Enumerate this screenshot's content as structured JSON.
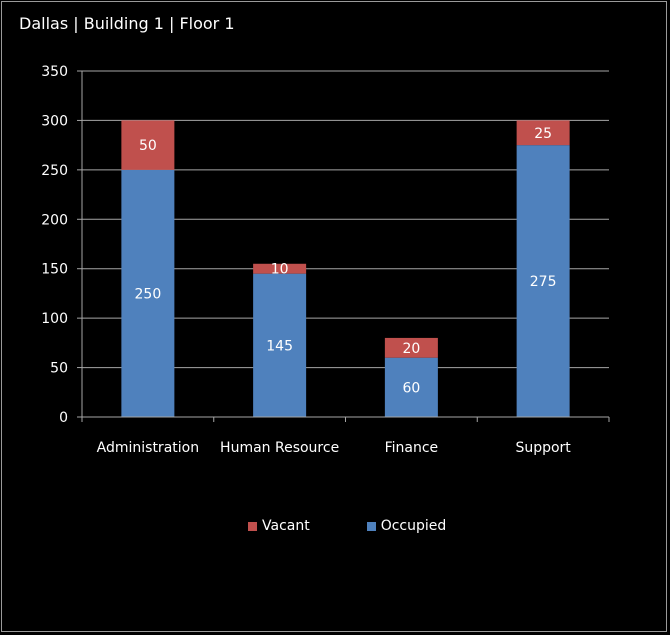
{
  "title": "Dallas | Building 1 | Floor 1",
  "colors": {
    "background": "#000000",
    "vacant": "#c0504d",
    "occupied": "#4f81bd",
    "grid": "#a6a6a6",
    "text": "#ffffff"
  },
  "chart_data": {
    "type": "bar",
    "stacked": true,
    "title": "Dallas | Building 1 | Floor 1",
    "xlabel": "",
    "ylabel": "",
    "categories": [
      "Administration",
      "Human Resource",
      "Finance",
      "Support"
    ],
    "series": [
      {
        "name": "Occupied",
        "values": [
          250,
          145,
          60,
          275
        ],
        "color": "#4f81bd"
      },
      {
        "name": "Vacant",
        "values": [
          50,
          10,
          20,
          25
        ],
        "color": "#c0504d"
      }
    ],
    "ylim": [
      0,
      350
    ],
    "yticks": [
      0,
      50,
      100,
      150,
      200,
      250,
      300,
      350
    ],
    "grid": true,
    "legend_position": "bottom",
    "data_labels": true
  },
  "legend": {
    "items": [
      {
        "label": "Vacant",
        "color": "#c0504d"
      },
      {
        "label": "Occupied",
        "color": "#4f81bd"
      }
    ]
  }
}
